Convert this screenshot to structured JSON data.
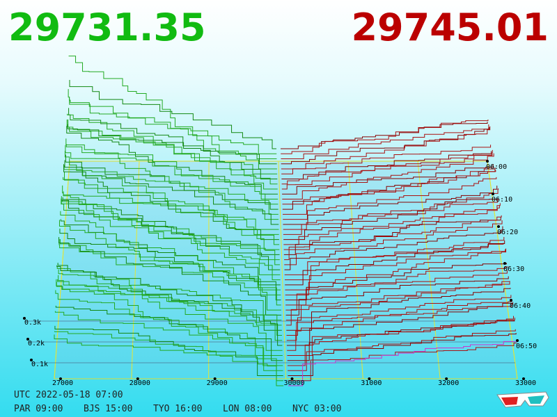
{
  "header": {
    "bid": "29731.35",
    "ask": "29745.01"
  },
  "axes": {
    "price_ticks": [
      "27000",
      "28000",
      "29000",
      "30000",
      "31000",
      "32000",
      "33000"
    ],
    "volume_ticks": [
      "0.3k",
      "0.2k",
      "0.1k"
    ],
    "time_ticks": [
      "06:00",
      "06:10",
      "06:20",
      "06:30",
      "06:40",
      "06:50"
    ]
  },
  "footer": {
    "utc": "UTC 2022-05-18 07:00",
    "zones": [
      "PAR 09:00",
      "BJS 15:00",
      "TYO 16:00",
      "LON 08:00",
      "NYC 03:00"
    ]
  }
}
